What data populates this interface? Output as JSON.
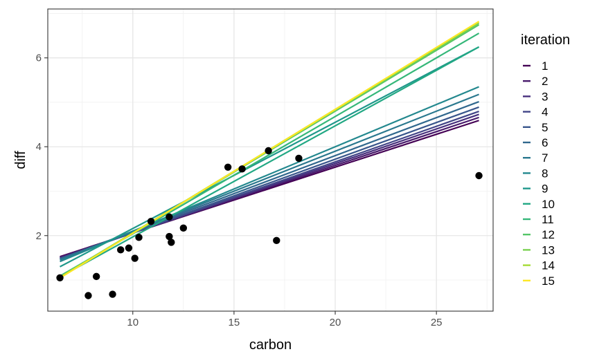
{
  "chart_data": {
    "type": "scatter",
    "xlabel": "carbon",
    "ylabel": "diff",
    "xlim": [
      5.8,
      27.8
    ],
    "ylim": [
      0.3,
      7.1
    ],
    "x_ticks": [
      10,
      15,
      20,
      25
    ],
    "y_ticks": [
      2,
      4,
      6
    ],
    "x_tick_labels": [
      "10",
      "15",
      "20",
      "25"
    ],
    "y_tick_labels": [
      "2",
      "4",
      "6"
    ],
    "grid": true,
    "legend": {
      "title": "iteration",
      "placement": "right"
    },
    "points": {
      "x": [
        6.4,
        7.8,
        8.2,
        9.0,
        9.4,
        9.8,
        10.1,
        10.3,
        10.9,
        11.8,
        11.8,
        11.9,
        12.5,
        14.7,
        15.4,
        16.7,
        17.1,
        18.2,
        27.1
      ],
      "y": [
        1.05,
        0.65,
        1.08,
        0.68,
        1.68,
        1.72,
        1.49,
        1.96,
        2.32,
        1.98,
        2.42,
        1.85,
        2.17,
        3.54,
        3.5,
        3.91,
        1.89,
        3.74,
        3.35
      ]
    },
    "fitted_lines": {
      "x_range": [
        6.4,
        27.1
      ],
      "series": [
        {
          "name": "1",
          "intercept": 0.58,
          "slope": 0.148,
          "color": "#440154"
        },
        {
          "name": "2",
          "intercept": 0.54,
          "slope": 0.152,
          "color": "#481A6C"
        },
        {
          "name": "3",
          "intercept": 0.5,
          "slope": 0.156,
          "color": "#472F7D"
        },
        {
          "name": "4",
          "intercept": 0.46,
          "slope": 0.16,
          "color": "#414487"
        },
        {
          "name": "5",
          "intercept": 0.42,
          "slope": 0.165,
          "color": "#39568C"
        },
        {
          "name": "6",
          "intercept": 0.38,
          "slope": 0.171,
          "color": "#31688E"
        },
        {
          "name": "7",
          "intercept": 0.3,
          "slope": 0.18,
          "color": "#2A788E"
        },
        {
          "name": "8",
          "intercept": 0.2,
          "slope": 0.19,
          "color": "#23888E"
        },
        {
          "name": "9",
          "intercept": -0.23,
          "slope": 0.239,
          "color": "#1F988B"
        },
        {
          "name": "10",
          "intercept": -0.53,
          "slope": 0.25,
          "color": "#22A884"
        },
        {
          "name": "11",
          "intercept": -0.6,
          "slope": 0.264,
          "color": "#35B779"
        },
        {
          "name": "12",
          "intercept": -0.68,
          "slope": 0.274,
          "color": "#54C568"
        },
        {
          "name": "13",
          "intercept": -0.7,
          "slope": 0.276,
          "color": "#7AD151"
        },
        {
          "name": "14",
          "intercept": -0.72,
          "slope": 0.278,
          "color": "#A5DB36"
        },
        {
          "name": "15",
          "intercept": -0.74,
          "slope": 0.279,
          "color": "#FDE725"
        }
      ]
    }
  }
}
